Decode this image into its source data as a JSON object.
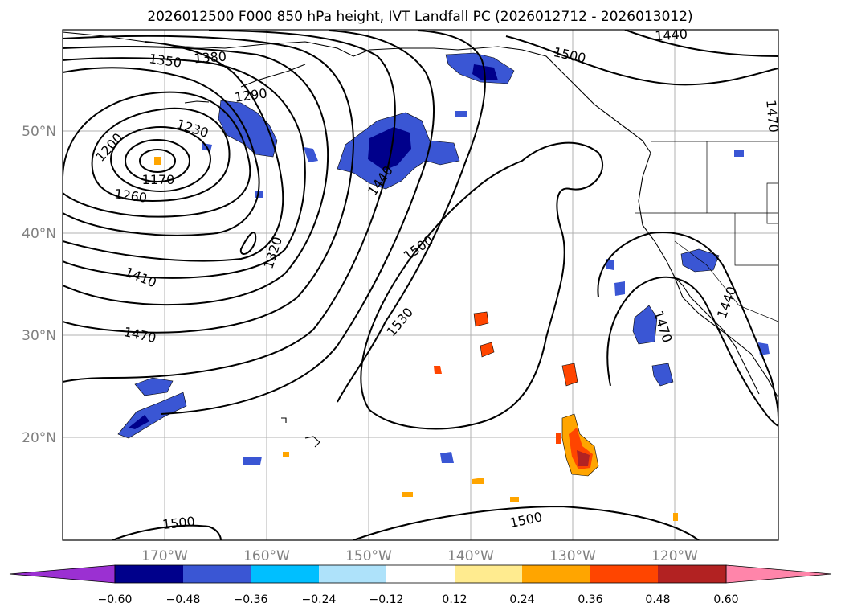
{
  "title": "2026012500 F000 850 hPa height, IVT Landfall PC (2026012712 - 2026013012)",
  "axes": {
    "lat_labels": [
      "50°N",
      "40°N",
      "30°N",
      "20°N"
    ],
    "lon_labels": [
      "170°W",
      "160°W",
      "150°W",
      "140°W",
      "130°W",
      "120°W"
    ]
  },
  "contour_labels": {
    "c1170": "1170",
    "c1200": "1200",
    "c1230": "1230",
    "c1260": "1260",
    "c1290": "1290",
    "c1320": "1320",
    "c1350": "1350",
    "c1380": "1380",
    "c1410": "1410",
    "c1440_west": "1440",
    "c1440_top": "1440",
    "c1440_east": "1440",
    "c1470_west": "1470",
    "c1470_east": "1470",
    "c1470_right": "1470",
    "c1500_top": "1500",
    "c1500_mid": "1500",
    "c1500_bottom_left": "1500",
    "c1500_bottom_right": "1500",
    "c1530": "1530"
  },
  "colorbar": {
    "ticks": [
      "−0.60",
      "−0.48",
      "−0.36",
      "−0.24",
      "−0.12",
      "0.12",
      "0.24",
      "0.36",
      "0.48",
      "0.60"
    ],
    "colors": [
      "#9b30d2",
      "#00008b",
      "#3a56d4",
      "#00bfff",
      "#aee2fa",
      "#ffffff",
      "#ffeb8f",
      "#ffa500",
      "#ff4500",
      "#b22222",
      "#ff85aa"
    ]
  }
}
